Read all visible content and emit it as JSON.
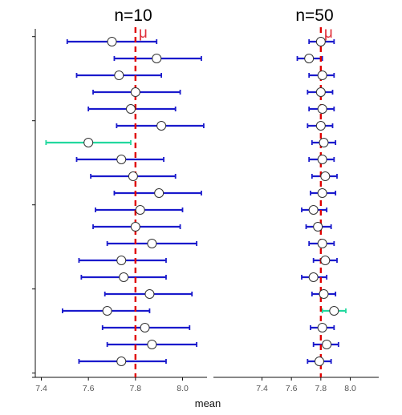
{
  "chart_data": [
    {
      "type": "errorbar",
      "title": "n=10",
      "xlim": [
        7.37,
        8.1
      ],
      "xticks": [
        7.4,
        7.6,
        7.8,
        8.0
      ],
      "xtick_labels": [
        "7.4",
        "7.6",
        "7.8",
        "8.0"
      ],
      "reference_line": {
        "value": 7.8,
        "label": "μ",
        "style": "dashed",
        "color": "#e00000"
      },
      "intervals": [
        {
          "mean": 7.7,
          "lo": 7.51,
          "hi": 7.89,
          "highlight": false
        },
        {
          "mean": 7.89,
          "lo": 7.71,
          "hi": 8.08,
          "highlight": false
        },
        {
          "mean": 7.73,
          "lo": 7.55,
          "hi": 7.91,
          "highlight": false
        },
        {
          "mean": 7.8,
          "lo": 7.62,
          "hi": 7.99,
          "highlight": false
        },
        {
          "mean": 7.78,
          "lo": 7.6,
          "hi": 7.97,
          "highlight": false
        },
        {
          "mean": 7.91,
          "lo": 7.72,
          "hi": 8.09,
          "highlight": false
        },
        {
          "mean": 7.6,
          "lo": 7.42,
          "hi": 7.78,
          "highlight": true
        },
        {
          "mean": 7.74,
          "lo": 7.55,
          "hi": 7.92,
          "highlight": false
        },
        {
          "mean": 7.79,
          "lo": 7.61,
          "hi": 7.97,
          "highlight": false
        },
        {
          "mean": 7.9,
          "lo": 7.71,
          "hi": 8.08,
          "highlight": false
        },
        {
          "mean": 7.82,
          "lo": 7.63,
          "hi": 8.0,
          "highlight": false
        },
        {
          "mean": 7.8,
          "lo": 7.62,
          "hi": 7.99,
          "highlight": false
        },
        {
          "mean": 7.87,
          "lo": 7.68,
          "hi": 8.06,
          "highlight": false
        },
        {
          "mean": 7.74,
          "lo": 7.56,
          "hi": 7.93,
          "highlight": false
        },
        {
          "mean": 7.75,
          "lo": 7.57,
          "hi": 7.93,
          "highlight": false
        },
        {
          "mean": 7.86,
          "lo": 7.67,
          "hi": 8.04,
          "highlight": false
        },
        {
          "mean": 7.68,
          "lo": 7.49,
          "hi": 7.86,
          "highlight": false
        },
        {
          "mean": 7.84,
          "lo": 7.66,
          "hi": 8.03,
          "highlight": false
        },
        {
          "mean": 7.87,
          "lo": 7.68,
          "hi": 8.06,
          "highlight": false
        },
        {
          "mean": 7.74,
          "lo": 7.56,
          "hi": 7.93,
          "highlight": false
        }
      ]
    },
    {
      "type": "errorbar",
      "title": "n=50",
      "xlim": [
        7.37,
        8.1
      ],
      "xticks": [
        7.4,
        7.6,
        7.8,
        8.0
      ],
      "xtick_labels": [
        "7.4",
        "7.6",
        "7.8",
        "8.0"
      ],
      "reference_line": {
        "value": 7.8,
        "label": "μ",
        "style": "dashed",
        "color": "#e00000"
      },
      "intervals": [
        {
          "mean": 7.8,
          "lo": 7.72,
          "hi": 7.89,
          "highlight": false
        },
        {
          "mean": 7.72,
          "lo": 7.64,
          "hi": 7.81,
          "highlight": false
        },
        {
          "mean": 7.81,
          "lo": 7.72,
          "hi": 7.89,
          "highlight": false
        },
        {
          "mean": 7.8,
          "lo": 7.71,
          "hi": 7.88,
          "highlight": false
        },
        {
          "mean": 7.81,
          "lo": 7.72,
          "hi": 7.89,
          "highlight": false
        },
        {
          "mean": 7.8,
          "lo": 7.71,
          "hi": 7.88,
          "highlight": false
        },
        {
          "mean": 7.82,
          "lo": 7.74,
          "hi": 7.9,
          "highlight": false
        },
        {
          "mean": 7.81,
          "lo": 7.72,
          "hi": 7.89,
          "highlight": false
        },
        {
          "mean": 7.83,
          "lo": 7.74,
          "hi": 7.91,
          "highlight": false
        },
        {
          "mean": 7.81,
          "lo": 7.73,
          "hi": 7.9,
          "highlight": false
        },
        {
          "mean": 7.75,
          "lo": 7.67,
          "hi": 7.84,
          "highlight": false
        },
        {
          "mean": 7.78,
          "lo": 7.7,
          "hi": 7.87,
          "highlight": false
        },
        {
          "mean": 7.81,
          "lo": 7.72,
          "hi": 7.89,
          "highlight": false
        },
        {
          "mean": 7.83,
          "lo": 7.75,
          "hi": 7.91,
          "highlight": false
        },
        {
          "mean": 7.75,
          "lo": 7.67,
          "hi": 7.84,
          "highlight": false
        },
        {
          "mean": 7.82,
          "lo": 7.74,
          "hi": 7.9,
          "highlight": false
        },
        {
          "mean": 7.89,
          "lo": 7.81,
          "hi": 7.97,
          "highlight": true
        },
        {
          "mean": 7.81,
          "lo": 7.73,
          "hi": 7.89,
          "highlight": false
        },
        {
          "mean": 7.84,
          "lo": 7.75,
          "hi": 7.92,
          "highlight": false
        },
        {
          "mean": 7.79,
          "lo": 7.71,
          "hi": 7.87,
          "highlight": false
        }
      ]
    }
  ],
  "xlabel": "mean",
  "colors": {
    "interval": "#1a1acc",
    "highlight": "#22d89e",
    "reference": "#e00000",
    "point_fill": "#ffffff",
    "point_stroke": "#333333"
  }
}
